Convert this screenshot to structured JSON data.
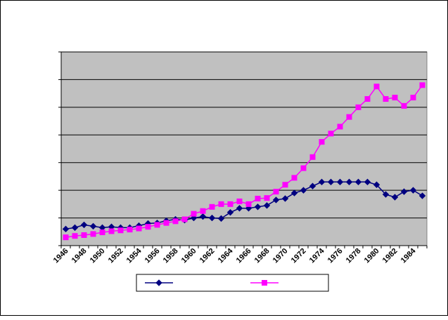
{
  "chart_data": {
    "type": "line",
    "title": "",
    "xlabel": "",
    "ylabel": "",
    "categories": [
      "1946",
      "1947",
      "1948",
      "1949",
      "1950",
      "1951",
      "1952",
      "1953",
      "1954",
      "1955",
      "1956",
      "1957",
      "1958",
      "1959",
      "1960",
      "1961",
      "1962",
      "1963",
      "1964",
      "1965",
      "1966",
      "1967",
      "1968",
      "1969",
      "1970",
      "1971",
      "1972",
      "1973",
      "1974",
      "1975",
      "1976",
      "1977",
      "1978",
      "1979",
      "1980",
      "1981",
      "1982",
      "1983",
      "1984",
      "1985"
    ],
    "tick_labels": [
      "1946",
      "1948",
      "1950",
      "1952",
      "1954",
      "1956",
      "1958",
      "1960",
      "1962",
      "1964",
      "1966",
      "1968",
      "1970",
      "1972",
      "1974",
      "1976",
      "1978",
      "1980",
      "1982",
      "1984"
    ],
    "ylim": [
      0,
      7
    ],
    "grid": true,
    "legend_position": "bottom",
    "plot_background": "#c0c0c0",
    "series": [
      {
        "color": "#000080",
        "marker": "diamond",
        "values": [
          0.6,
          0.65,
          0.75,
          0.7,
          0.65,
          0.68,
          0.65,
          0.65,
          0.72,
          0.8,
          0.82,
          0.9,
          0.95,
          0.92,
          1.0,
          1.05,
          1.0,
          0.98,
          1.2,
          1.35,
          1.35,
          1.4,
          1.45,
          1.65,
          1.7,
          1.9,
          2.0,
          2.15,
          2.3,
          2.3,
          2.3,
          2.3,
          2.3,
          2.3,
          2.2,
          1.85,
          1.75,
          1.95,
          2.0,
          1.8
        ]
      },
      {
        "color": "#ff00ff",
        "marker": "square",
        "values": [
          0.3,
          0.35,
          0.38,
          0.42,
          0.48,
          0.52,
          0.55,
          0.58,
          0.62,
          0.68,
          0.75,
          0.82,
          0.88,
          0.95,
          1.15,
          1.25,
          1.4,
          1.5,
          1.5,
          1.6,
          1.5,
          1.7,
          1.72,
          1.95,
          2.2,
          2.45,
          2.8,
          3.2,
          3.75,
          4.05,
          4.3,
          4.65,
          5.0,
          5.3,
          5.75,
          5.3,
          5.35,
          5.05,
          5.35,
          5.8
        ]
      }
    ]
  }
}
